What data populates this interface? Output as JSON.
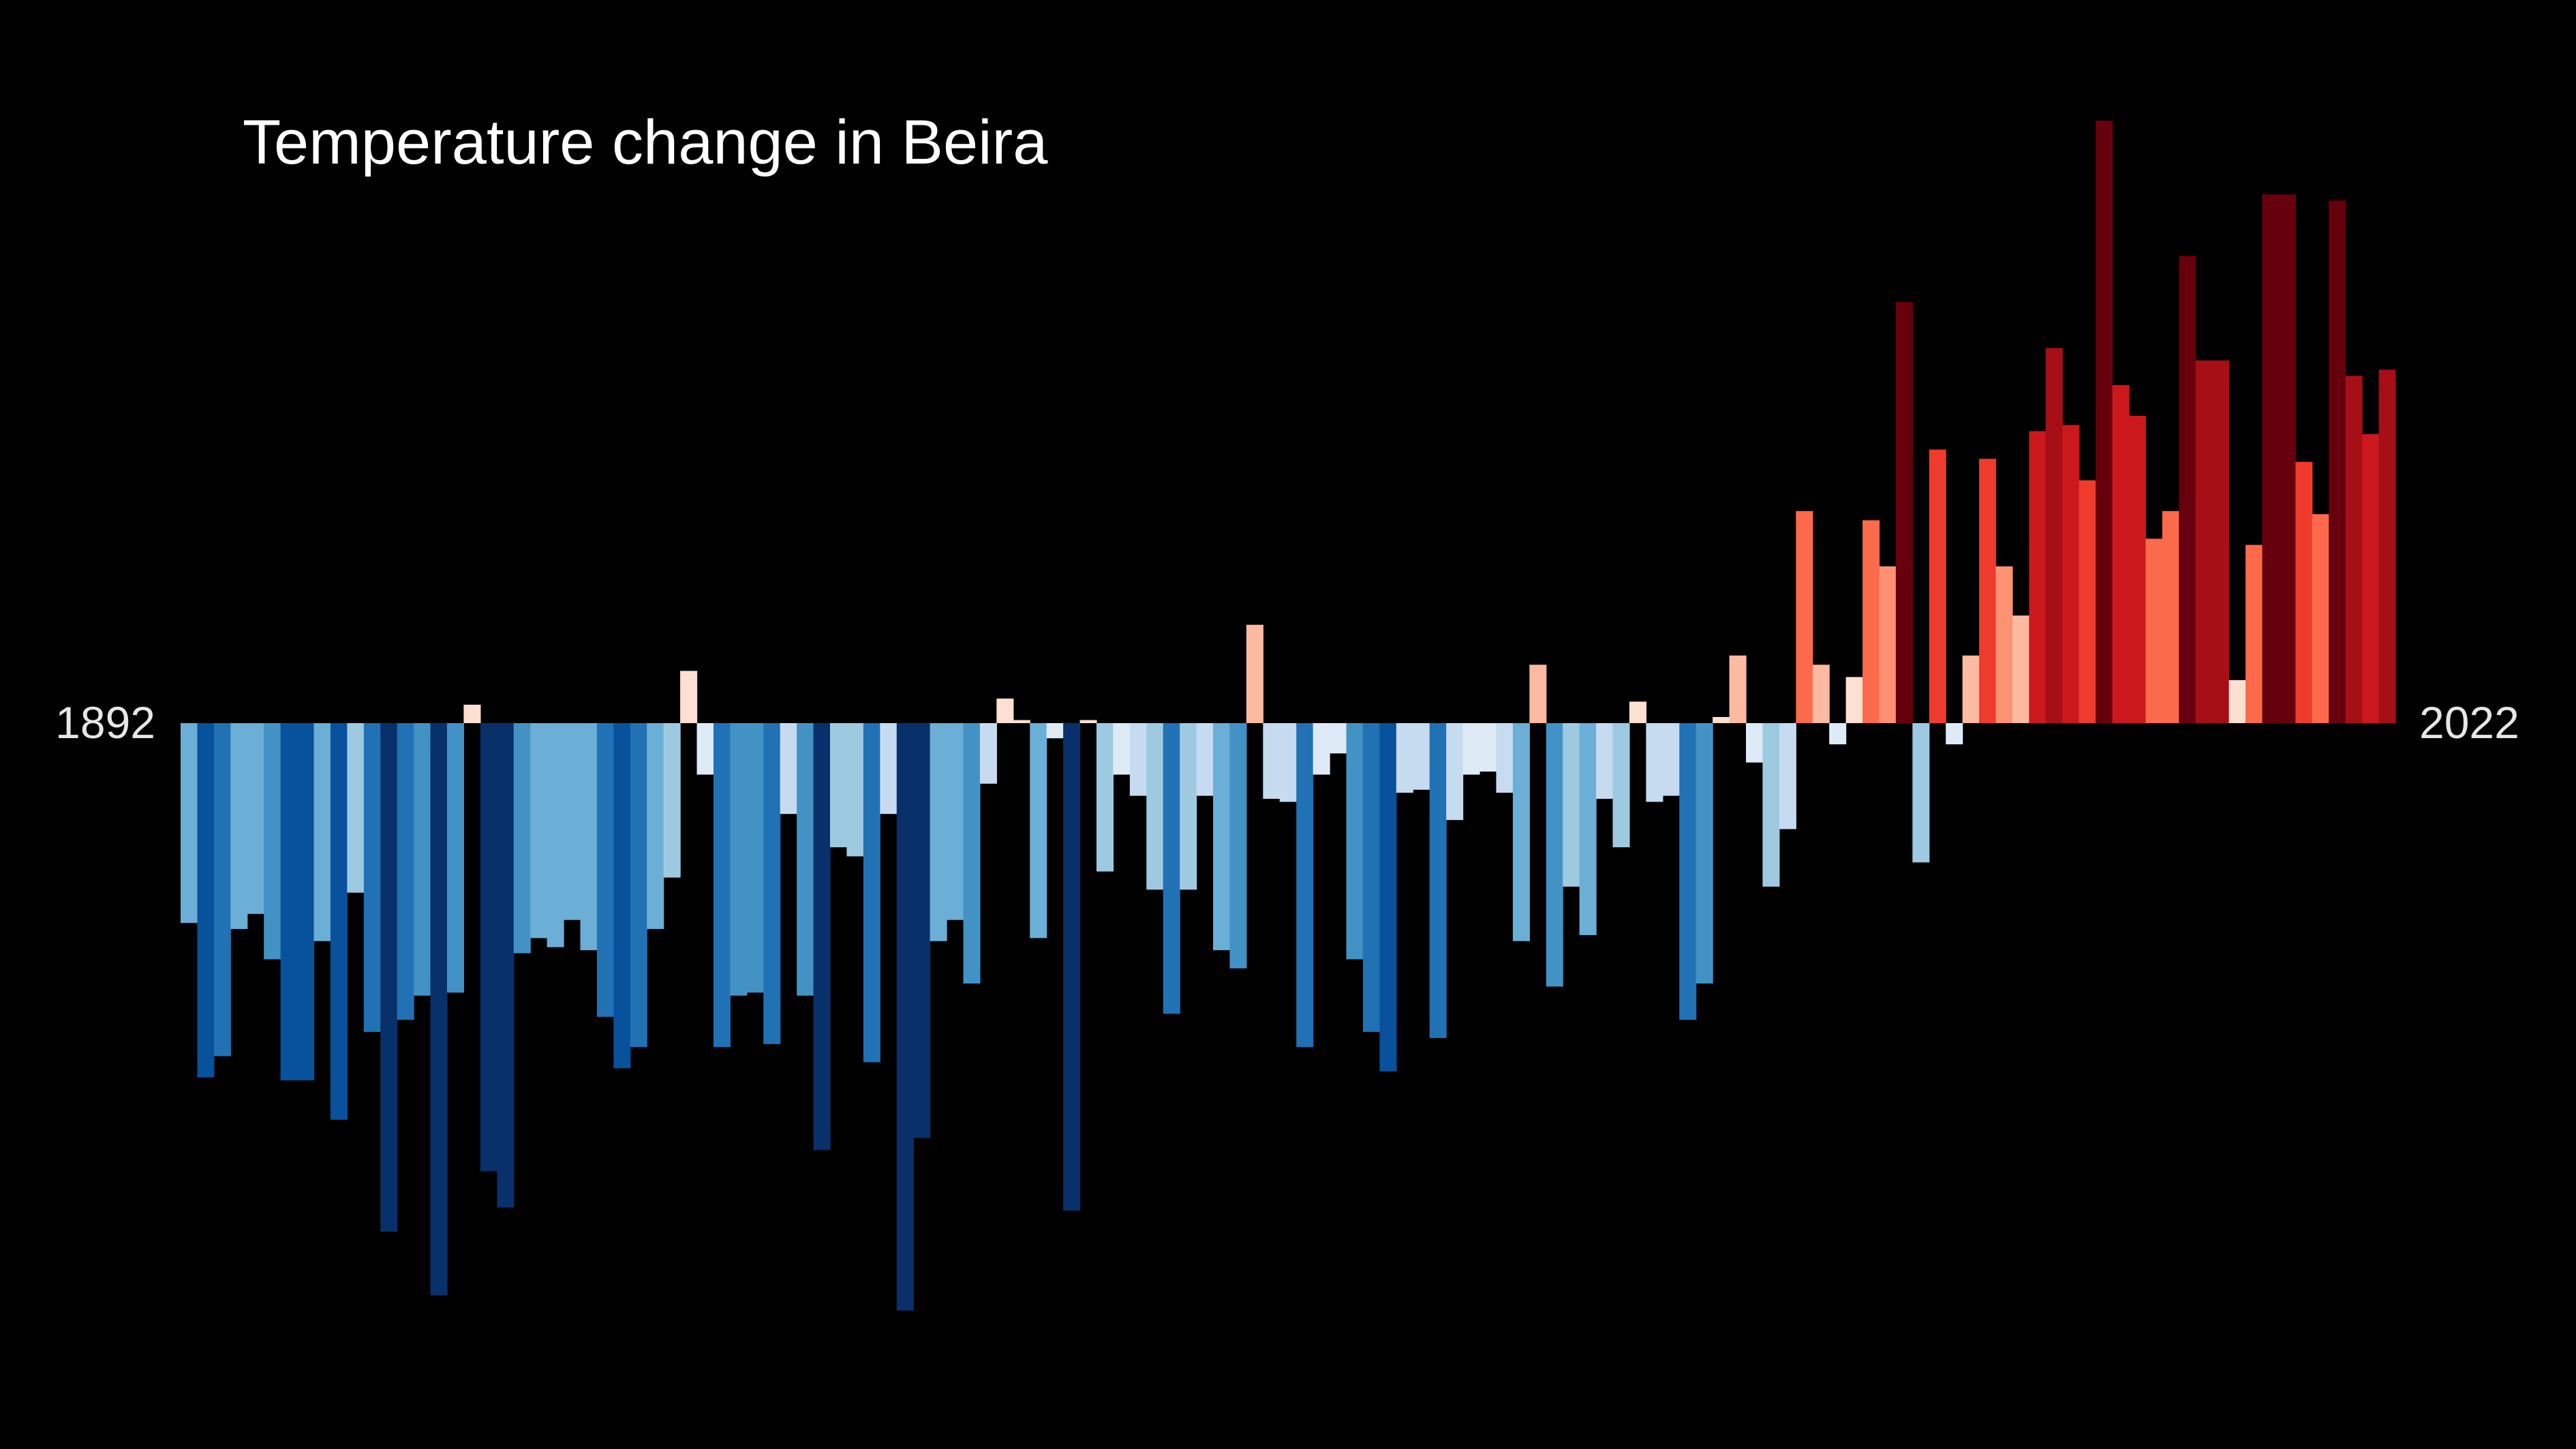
{
  "chart_data": {
    "type": "bar",
    "title": "Temperature change in Beira",
    "xlabel": "",
    "ylabel": "",
    "x_start": 1892,
    "x_end": 2022,
    "tick_labels": [
      "1892",
      "2022"
    ],
    "ylim": [
      -1.9,
      2.02
    ],
    "grid": false,
    "legend": "none",
    "background": "#000000",
    "colormap": [
      "#08306b",
      "#08519c",
      "#2171b5",
      "#4292c6",
      "#6baed6",
      "#9ecae1",
      "#c6dbef",
      "#deebf7",
      "#fee0d2",
      "#fcbba1",
      "#fc9272",
      "#fb6a4a",
      "#ef3b2c",
      "#cb181d",
      "#a50f15",
      "#67000d"
    ],
    "values": [
      -0.66,
      -1.17,
      -1.1,
      -0.68,
      -0.63,
      -0.78,
      -1.18,
      -1.18,
      -0.72,
      -1.31,
      -0.56,
      -1.02,
      -1.68,
      -0.98,
      -0.9,
      -1.89,
      -0.89,
      0.06,
      -1.48,
      -1.6,
      -0.76,
      -0.71,
      -0.74,
      -0.65,
      -0.75,
      -0.97,
      -1.14,
      -1.07,
      -0.68,
      -0.51,
      0.17,
      -0.17,
      -1.07,
      -0.9,
      -0.89,
      -1.06,
      -0.3,
      -0.9,
      -1.41,
      -0.41,
      -0.44,
      -1.12,
      -0.3,
      -1.94,
      -1.37,
      -0.72,
      -0.65,
      -0.86,
      -0.2,
      0.08,
      0.01,
      -0.71,
      -0.05,
      -1.61,
      0.01,
      -0.49,
      -0.17,
      -0.24,
      -0.55,
      -0.96,
      -0.55,
      -0.24,
      -0.75,
      -0.81,
      0.32,
      -0.25,
      -0.26,
      -1.07,
      -0.17,
      -0.1,
      -0.78,
      -1.02,
      -1.15,
      -0.23,
      -0.22,
      -1.04,
      -0.32,
      -0.17,
      -0.16,
      -0.23,
      -0.72,
      0.19,
      -0.87,
      -0.54,
      -0.7,
      -0.25,
      -0.41,
      0.07,
      -0.26,
      -0.24,
      -0.98,
      -0.86,
      0.02,
      0.22,
      -0.13,
      -0.54,
      -0.35,
      0.69,
      0.19,
      -0.07,
      0.15,
      0.66,
      0.51,
      1.37,
      -0.46,
      0.89,
      -0.07,
      0.22,
      0.86,
      0.51,
      0.35,
      0.95,
      1.22,
      0.97,
      0.79,
      1.96,
      1.1,
      1.0,
      0.6,
      0.69,
      1.52,
      1.18,
      1.18,
      0.14,
      0.58,
      1.72,
      1.72,
      0.85,
      0.68,
      1.7,
      1.13,
      0.94,
      1.15
    ]
  }
}
